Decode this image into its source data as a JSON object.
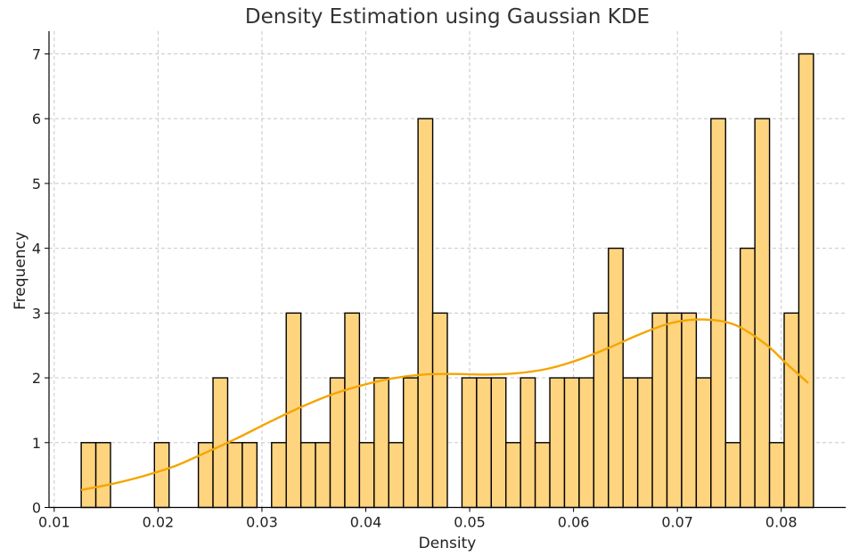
{
  "chart_data": {
    "type": "bar",
    "title": "Density Estimation using Gaussian KDE",
    "xlabel": "Density",
    "ylabel": "Frequency",
    "xlim": [
      0.0095,
      0.0862
    ],
    "ylim": [
      0,
      7.35
    ],
    "xticks": [
      0.01,
      0.02,
      0.03,
      0.04,
      0.05,
      0.06,
      0.07,
      0.08
    ],
    "xtick_labels": [
      "0.01",
      "0.02",
      "0.03",
      "0.04",
      "0.05",
      "0.06",
      "0.07",
      "0.08"
    ],
    "yticks": [
      0,
      1,
      2,
      3,
      4,
      5,
      6,
      7
    ],
    "ytick_labels": [
      "0",
      "1",
      "2",
      "3",
      "4",
      "5",
      "6",
      "7"
    ],
    "grid": true,
    "bin_start": 0.0126,
    "bin_width": 0.00141,
    "counts": [
      1,
      1,
      0,
      0,
      0,
      1,
      0,
      0,
      1,
      2,
      1,
      1,
      0,
      1,
      3,
      1,
      1,
      2,
      3,
      1,
      2,
      1,
      2,
      6,
      3,
      0,
      2,
      2,
      2,
      1,
      2,
      1,
      2,
      2,
      2,
      3,
      4,
      2,
      2,
      3,
      3,
      3,
      2,
      6,
      1,
      4,
      6,
      1,
      3,
      7
    ],
    "kde_curve": {
      "x": [
        0.0126,
        0.0155,
        0.0185,
        0.0215,
        0.0245,
        0.0275,
        0.0305,
        0.0335,
        0.0365,
        0.0395,
        0.0425,
        0.0455,
        0.0485,
        0.0515,
        0.0545,
        0.0575,
        0.0605,
        0.0635,
        0.0665,
        0.0695,
        0.0725,
        0.0755,
        0.0785,
        0.0805,
        0.0826
      ],
      "y": [
        0.27,
        0.36,
        0.48,
        0.63,
        0.84,
        1.06,
        1.3,
        1.53,
        1.73,
        1.88,
        1.99,
        2.05,
        2.06,
        2.05,
        2.07,
        2.14,
        2.28,
        2.47,
        2.68,
        2.85,
        2.9,
        2.82,
        2.52,
        2.22,
        1.92
      ]
    },
    "colors": {
      "bar_fill": "#ffd47f",
      "bar_edge": "#000000",
      "kde_line": "#f5a500"
    }
  }
}
